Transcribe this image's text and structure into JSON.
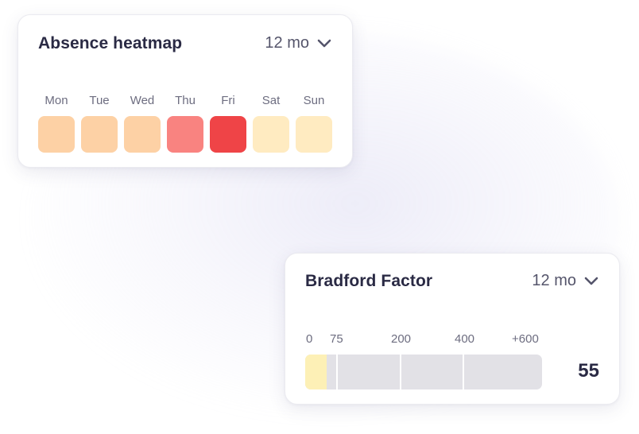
{
  "heatmap": {
    "title": "Absence heatmap",
    "period": "12 mo",
    "days": [
      {
        "label": "Mon",
        "color": "#fdd1a5"
      },
      {
        "label": "Tue",
        "color": "#fdd1a5"
      },
      {
        "label": "Wed",
        "color": "#fdd1a5"
      },
      {
        "label": "Thu",
        "color": "#f98380"
      },
      {
        "label": "Fri",
        "color": "#ef4447"
      },
      {
        "label": "Sat",
        "color": "#ffebc1"
      },
      {
        "label": "Sun",
        "color": "#ffebc1"
      }
    ]
  },
  "bradford": {
    "title": "Bradford Factor",
    "period": "12 mo",
    "scale_labels": [
      "0",
      "75",
      "200",
      "400",
      "+600"
    ],
    "score": "55",
    "fill_fraction": 0.09,
    "colors": {
      "fill": "#fdf0b6",
      "track": "#e2e1e6"
    }
  }
}
